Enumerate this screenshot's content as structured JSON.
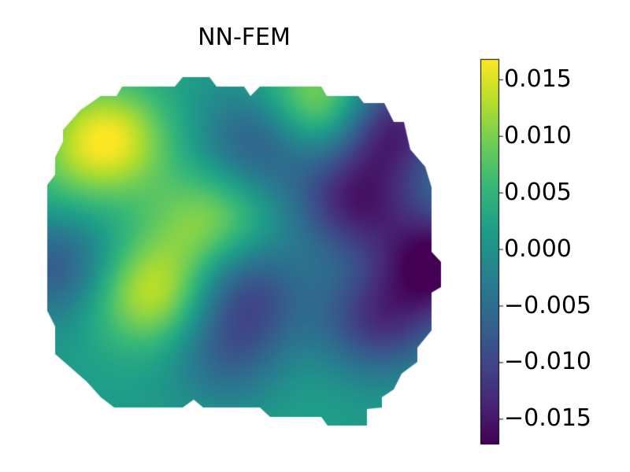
{
  "chart_data": {
    "type": "heatmap",
    "title": "NN-FEM",
    "xlabel": "",
    "ylabel": "",
    "colormap": "viridis",
    "axis_visible": false,
    "colorbar": {
      "placement": "right",
      "vmin": -0.0172,
      "vmax": 0.0168,
      "ticks": [
        0.015,
        0.01,
        0.005,
        0.0,
        -0.005,
        -0.01,
        -0.015
      ],
      "tick_labels": [
        "0.015",
        "0.010",
        "0.005",
        "0.000",
        "−0.005",
        "−0.010",
        "−0.015"
      ]
    },
    "field_features": [
      {
        "kind": "peak",
        "x": 0.15,
        "y": 0.82,
        "value": 0.0165
      },
      {
        "kind": "peak",
        "x": 0.27,
        "y": 0.38,
        "value": 0.0145
      },
      {
        "kind": "peak",
        "x": 0.7,
        "y": 0.91,
        "value": 0.016
      },
      {
        "kind": "peak",
        "x": 0.41,
        "y": 0.58,
        "value": 0.011
      },
      {
        "kind": "peak",
        "x": 0.62,
        "y": 0.15,
        "value": 0.003
      },
      {
        "kind": "peak",
        "x": 0.64,
        "y": 0.58,
        "value": 0.002
      },
      {
        "kind": "peak",
        "x": 0.02,
        "y": 0.68,
        "value": 0.004
      },
      {
        "kind": "trough",
        "x": 0.86,
        "y": 0.86,
        "value": -0.016
      },
      {
        "kind": "trough",
        "x": 1.0,
        "y": 0.47,
        "value": -0.017
      },
      {
        "kind": "trough",
        "x": 0.02,
        "y": 0.46,
        "value": -0.008
      },
      {
        "kind": "trough",
        "x": 0.78,
        "y": 0.64,
        "value": -0.013
      },
      {
        "kind": "trough",
        "x": 0.47,
        "y": 0.22,
        "value": -0.007
      },
      {
        "kind": "trough",
        "x": 0.5,
        "y": 0.4,
        "value": -0.009
      },
      {
        "kind": "trough",
        "x": 0.55,
        "y": 0.82,
        "value": -0.009
      },
      {
        "kind": "trough",
        "x": 0.84,
        "y": 0.3,
        "value": -0.011
      }
    ]
  }
}
